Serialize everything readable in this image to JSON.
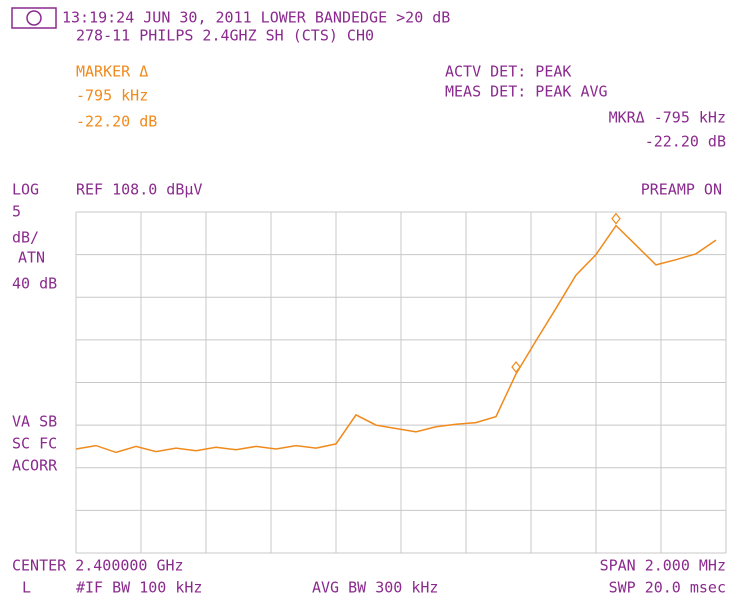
{
  "screen": {
    "line1": "13:19:24 JUN 30, 2011  LOWER BANDEDGE >20 dB",
    "line2": "278-11 PHILPS 2.4GHZ SH (CTS) CH0",
    "marker_title": "MARKER Δ",
    "marker_freq": "-795 kHz",
    "marker_amp": "-22.20 dB",
    "actv_det": "ACTV DET: PEAK",
    "meas_det": "MEAS DET: PEAK AVG",
    "mkr_freq": "MKRΔ -795 kHz",
    "mkr_amp": "-22.20 dB",
    "scale_type": "LOG",
    "ref": "REF 108.0 dBµV",
    "preamp": "PREAMP ON",
    "div_value": "5",
    "div_unit": "dB/",
    "atn": "ATN",
    "atn_value": "40 dB",
    "va_sb": "VA SB",
    "sc_fc": "SC FC",
    "acorr": "ACORR",
    "center": "CENTER 2.400000 GHz",
    "span": "SPAN 2.000 MHz",
    "l": "L",
    "if_bw": "#IF BW 100 kHz",
    "avg_bw": "AVG BW 300 kHz",
    "swp": "SWP 20.0 msec"
  },
  "chart_data": {
    "type": "line",
    "color": "#f08a1c",
    "ylim": [
      68,
      108
    ],
    "values": [
      80.2,
      80.6,
      79.8,
      80.5,
      79.9,
      80.3,
      80.0,
      80.4,
      80.1,
      80.5,
      80.2,
      80.6,
      80.3,
      80.8,
      84.2,
      83.0,
      82.6,
      82.2,
      82.8,
      83.1,
      83.3,
      84.0,
      89.0,
      92.9,
      96.7,
      100.6,
      103.0,
      106.4,
      104.1,
      101.8,
      102.4,
      103.1,
      104.7
    ]
  }
}
